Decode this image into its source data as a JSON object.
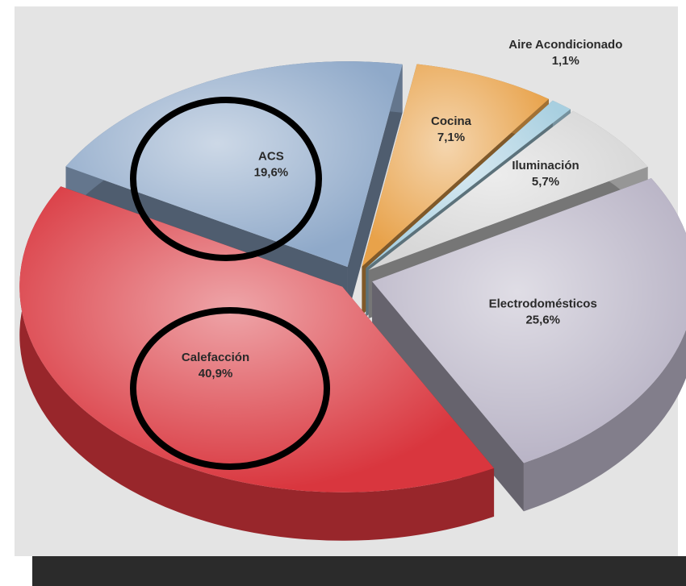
{
  "chart_data": {
    "type": "pie",
    "categories": [
      "Calefacción",
      "ACS",
      "Cocina",
      "Aire Acondicionado",
      "Iluminación",
      "Electrodomésticos"
    ],
    "values": [
      40.9,
      19.6,
      7.1,
      1.1,
      5.7,
      25.6
    ],
    "value_labels": [
      "40,9%",
      "19,6%",
      "7,1%",
      "1,1%",
      "5,7%",
      "25,6%"
    ],
    "colors": [
      "#d9363e",
      "#8fa9c9",
      "#e8a24a",
      "#a8cfe0",
      "#d6d6d6",
      "#b9b4c6"
    ]
  }
}
